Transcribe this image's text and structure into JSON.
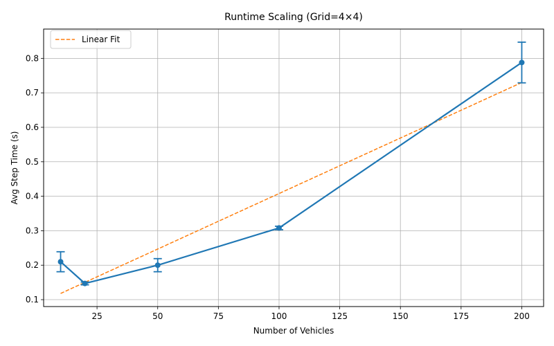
{
  "chart_data": {
    "type": "line",
    "title": "Runtime Scaling (Grid=4×4)",
    "xlabel": "Number of Vehicles",
    "ylabel": "Avg Step Time (s)",
    "xlim": [
      3,
      209
    ],
    "ylim": [
      0.08,
      0.885
    ],
    "xticks": [
      25,
      50,
      75,
      100,
      125,
      150,
      175,
      200
    ],
    "yticks": [
      0.1,
      0.2,
      0.3,
      0.4,
      0.5,
      0.6,
      0.7,
      0.8
    ],
    "grid": true,
    "legend_position": "upper-left",
    "series": [
      {
        "kind": "errorbar-line",
        "color": "#1f77b4",
        "x": [
          10,
          20,
          50,
          100,
          200
        ],
        "y": [
          0.21,
          0.147,
          0.2,
          0.308,
          0.788
        ],
        "yerr": [
          0.029,
          0.004,
          0.019,
          0.005,
          0.059
        ]
      },
      {
        "kind": "dashed-line",
        "name": "Linear Fit",
        "color": "#ff7f0e",
        "x": [
          10,
          200
        ],
        "y": [
          0.118,
          0.73
        ]
      }
    ]
  }
}
